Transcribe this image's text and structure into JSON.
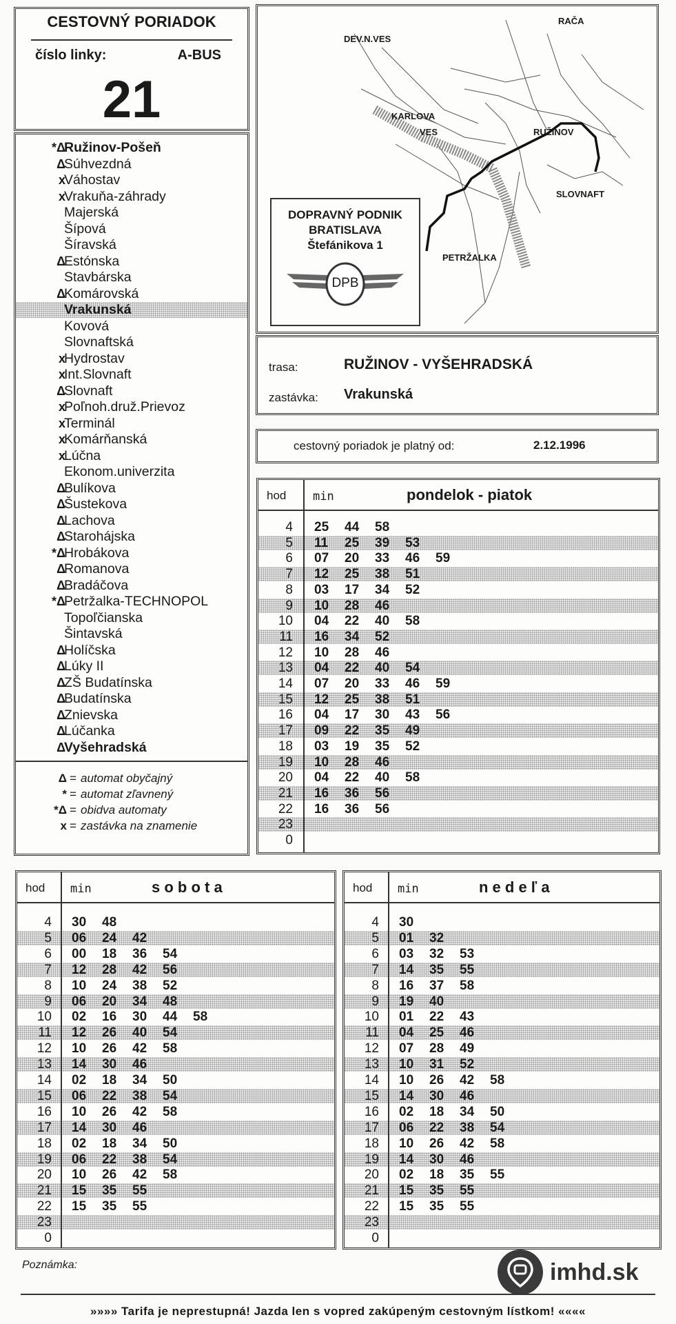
{
  "header": {
    "title": "CESTOVNÝ PORIADOK",
    "line_label": "číslo linky:",
    "line_type": "A-BUS",
    "line_number": "21"
  },
  "stops": [
    {
      "mark": "*Δ",
      "name": "Ružinov-Pošeň",
      "bold": true
    },
    {
      "mark": "Δ",
      "name": "Súhvezdná"
    },
    {
      "mark": "x",
      "name": "Váhostav"
    },
    {
      "mark": "x",
      "name": "Vrakuňa-záhrady"
    },
    {
      "mark": "",
      "name": "Majerská"
    },
    {
      "mark": "",
      "name": "Šípová"
    },
    {
      "mark": "",
      "name": "Šíravská"
    },
    {
      "mark": "Δ",
      "name": "Estónska"
    },
    {
      "mark": "",
      "name": "Stavbárska"
    },
    {
      "mark": "Δ",
      "name": "Komárovská"
    },
    {
      "mark": "",
      "name": "Vrakunská",
      "bold": true,
      "current": true
    },
    {
      "mark": "",
      "name": "Kovová"
    },
    {
      "mark": "",
      "name": "Slovnaftská"
    },
    {
      "mark": "x",
      "name": "Hydrostav"
    },
    {
      "mark": "x",
      "name": "Int.Slovnaft"
    },
    {
      "mark": "Δ",
      "name": "Slovnaft"
    },
    {
      "mark": "x",
      "name": "Poľnoh.druž.Prievoz"
    },
    {
      "mark": "x",
      "name": "Terminál"
    },
    {
      "mark": "x",
      "name": "Komárňanská"
    },
    {
      "mark": "x",
      "name": "Lúčna"
    },
    {
      "mark": "",
      "name": "Ekonom.univerzita"
    },
    {
      "mark": "Δ",
      "name": "Bulíkova"
    },
    {
      "mark": "Δ",
      "name": "Šustekova"
    },
    {
      "mark": "Δ",
      "name": "Lachova"
    },
    {
      "mark": "Δ",
      "name": "Starohájska"
    },
    {
      "mark": "*Δ",
      "name": "Hrobákova"
    },
    {
      "mark": "Δ",
      "name": "Romanova"
    },
    {
      "mark": "Δ",
      "name": "Bradáčova"
    },
    {
      "mark": "*Δ",
      "name": "Petržalka-TECHNOPOL"
    },
    {
      "mark": "",
      "name": "Topoľčianska"
    },
    {
      "mark": "",
      "name": "Šintavská"
    },
    {
      "mark": "Δ",
      "name": "Holíčska"
    },
    {
      "mark": "Δ",
      "name": "Lúky II"
    },
    {
      "mark": "Δ",
      "name": "ZŠ Budatínska"
    },
    {
      "mark": "Δ",
      "name": "Budatínska"
    },
    {
      "mark": "Δ",
      "name": "Znievska"
    },
    {
      "mark": "Δ",
      "name": "Lúčanka"
    },
    {
      "mark": "Δ",
      "name": "Vyšehradská",
      "bold": true
    }
  ],
  "legend": [
    {
      "mark": "Δ",
      "text": "automat obyčajný"
    },
    {
      "mark": "*",
      "text": "automat zľavnený"
    },
    {
      "mark": "*Δ",
      "text": "obidva automaty"
    },
    {
      "mark": "x",
      "text": "zastávka na znamenie"
    }
  ],
  "legend_equals": "=",
  "map": {
    "labels": {
      "devnves": "DEV.N.VES",
      "raca": "RAČA",
      "karlova1": "KARLOVA",
      "karlova2": "VES",
      "ruzinov": "RUŽINOV",
      "slovnaft": "SLOVNAFT",
      "petrzalka": "PETRŽALKA"
    },
    "company": {
      "line1": "DOPRAVNÝ PODNIK",
      "line2": "BRATISLAVA",
      "line3": "Štefánikova 1",
      "logo": "DPB"
    }
  },
  "route": {
    "trasa_label": "trasa:",
    "trasa": "RUŽINOV - VYŠEHRADSKÁ",
    "stop_label": "zastávka:",
    "stop": "Vrakunská"
  },
  "validity": {
    "label": "cestovný poriadok je platný od:",
    "date": "2.12.1996"
  },
  "col_hod": "hod",
  "col_min": "min",
  "timetables": {
    "weekday": {
      "title": "pondelok - piatok",
      "rows": [
        {
          "h": "4",
          "m": [
            "25",
            "44",
            "58"
          ]
        },
        {
          "h": "5",
          "m": [
            "11",
            "25",
            "39",
            "53"
          ]
        },
        {
          "h": "6",
          "m": [
            "07",
            "20",
            "33",
            "46",
            "59"
          ]
        },
        {
          "h": "7",
          "m": [
            "12",
            "25",
            "38",
            "51"
          ]
        },
        {
          "h": "8",
          "m": [
            "03",
            "17",
            "34",
            "52"
          ]
        },
        {
          "h": "9",
          "m": [
            "10",
            "28",
            "46"
          ]
        },
        {
          "h": "10",
          "m": [
            "04",
            "22",
            "40",
            "58"
          ]
        },
        {
          "h": "11",
          "m": [
            "16",
            "34",
            "52"
          ]
        },
        {
          "h": "12",
          "m": [
            "10",
            "28",
            "46"
          ]
        },
        {
          "h": "13",
          "m": [
            "04",
            "22",
            "40",
            "54"
          ]
        },
        {
          "h": "14",
          "m": [
            "07",
            "20",
            "33",
            "46",
            "59"
          ]
        },
        {
          "h": "15",
          "m": [
            "12",
            "25",
            "38",
            "51"
          ]
        },
        {
          "h": "16",
          "m": [
            "04",
            "17",
            "30",
            "43",
            "56"
          ]
        },
        {
          "h": "17",
          "m": [
            "09",
            "22",
            "35",
            "49"
          ]
        },
        {
          "h": "18",
          "m": [
            "03",
            "19",
            "35",
            "52"
          ]
        },
        {
          "h": "19",
          "m": [
            "10",
            "28",
            "46"
          ]
        },
        {
          "h": "20",
          "m": [
            "04",
            "22",
            "40",
            "58"
          ]
        },
        {
          "h": "21",
          "m": [
            "16",
            "36",
            "56"
          ]
        },
        {
          "h": "22",
          "m": [
            "16",
            "36",
            "56"
          ]
        },
        {
          "h": "23",
          "m": []
        },
        {
          "h": "0",
          "m": []
        }
      ]
    },
    "saturday": {
      "title": "s o b o t a",
      "rows": [
        {
          "h": "4",
          "m": [
            "30",
            "48"
          ]
        },
        {
          "h": "5",
          "m": [
            "06",
            "24",
            "42"
          ]
        },
        {
          "h": "6",
          "m": [
            "00",
            "18",
            "36",
            "54"
          ]
        },
        {
          "h": "7",
          "m": [
            "12",
            "28",
            "42",
            "56"
          ]
        },
        {
          "h": "8",
          "m": [
            "10",
            "24",
            "38",
            "52"
          ]
        },
        {
          "h": "9",
          "m": [
            "06",
            "20",
            "34",
            "48"
          ]
        },
        {
          "h": "10",
          "m": [
            "02",
            "16",
            "30",
            "44",
            "58"
          ]
        },
        {
          "h": "11",
          "m": [
            "12",
            "26",
            "40",
            "54"
          ]
        },
        {
          "h": "12",
          "m": [
            "10",
            "26",
            "42",
            "58"
          ]
        },
        {
          "h": "13",
          "m": [
            "14",
            "30",
            "46"
          ]
        },
        {
          "h": "14",
          "m": [
            "02",
            "18",
            "34",
            "50"
          ]
        },
        {
          "h": "15",
          "m": [
            "06",
            "22",
            "38",
            "54"
          ]
        },
        {
          "h": "16",
          "m": [
            "10",
            "26",
            "42",
            "58"
          ]
        },
        {
          "h": "17",
          "m": [
            "14",
            "30",
            "46"
          ]
        },
        {
          "h": "18",
          "m": [
            "02",
            "18",
            "34",
            "50"
          ]
        },
        {
          "h": "19",
          "m": [
            "06",
            "22",
            "38",
            "54"
          ]
        },
        {
          "h": "20",
          "m": [
            "10",
            "26",
            "42",
            "58"
          ]
        },
        {
          "h": "21",
          "m": [
            "15",
            "35",
            "55"
          ]
        },
        {
          "h": "22",
          "m": [
            "15",
            "35",
            "55"
          ]
        },
        {
          "h": "23",
          "m": []
        },
        {
          "h": "0",
          "m": []
        }
      ]
    },
    "sunday": {
      "title": "n e d e ľ a",
      "rows": [
        {
          "h": "4",
          "m": [
            "30"
          ]
        },
        {
          "h": "5",
          "m": [
            "01",
            "32"
          ]
        },
        {
          "h": "6",
          "m": [
            "03",
            "32",
            "53"
          ]
        },
        {
          "h": "7",
          "m": [
            "14",
            "35",
            "55"
          ]
        },
        {
          "h": "8",
          "m": [
            "16",
            "37",
            "58"
          ]
        },
        {
          "h": "9",
          "m": [
            "19",
            "40"
          ]
        },
        {
          "h": "10",
          "m": [
            "01",
            "22",
            "43"
          ]
        },
        {
          "h": "11",
          "m": [
            "04",
            "25",
            "46"
          ]
        },
        {
          "h": "12",
          "m": [
            "07",
            "28",
            "49"
          ]
        },
        {
          "h": "13",
          "m": [
            "10",
            "31",
            "52"
          ]
        },
        {
          "h": "14",
          "m": [
            "10",
            "26",
            "42",
            "58"
          ]
        },
        {
          "h": "15",
          "m": [
            "14",
            "30",
            "46"
          ]
        },
        {
          "h": "16",
          "m": [
            "02",
            "18",
            "34",
            "50"
          ]
        },
        {
          "h": "17",
          "m": [
            "06",
            "22",
            "38",
            "54"
          ]
        },
        {
          "h": "18",
          "m": [
            "10",
            "26",
            "42",
            "58"
          ]
        },
        {
          "h": "19",
          "m": [
            "14",
            "30",
            "46"
          ]
        },
        {
          "h": "20",
          "m": [
            "02",
            "18",
            "35",
            "55"
          ]
        },
        {
          "h": "21",
          "m": [
            "15",
            "35",
            "55"
          ]
        },
        {
          "h": "22",
          "m": [
            "15",
            "35",
            "55"
          ]
        },
        {
          "h": "23",
          "m": []
        },
        {
          "h": "0",
          "m": []
        }
      ]
    }
  },
  "note_label": "Poznámka:",
  "brand": {
    "name": "imhd.sk",
    "icon": "bus-pin-icon"
  },
  "footer": "»»»» Tarifa je neprestupná! Jazda len s vopred zakúpeným cestovným lístkom! ««««"
}
